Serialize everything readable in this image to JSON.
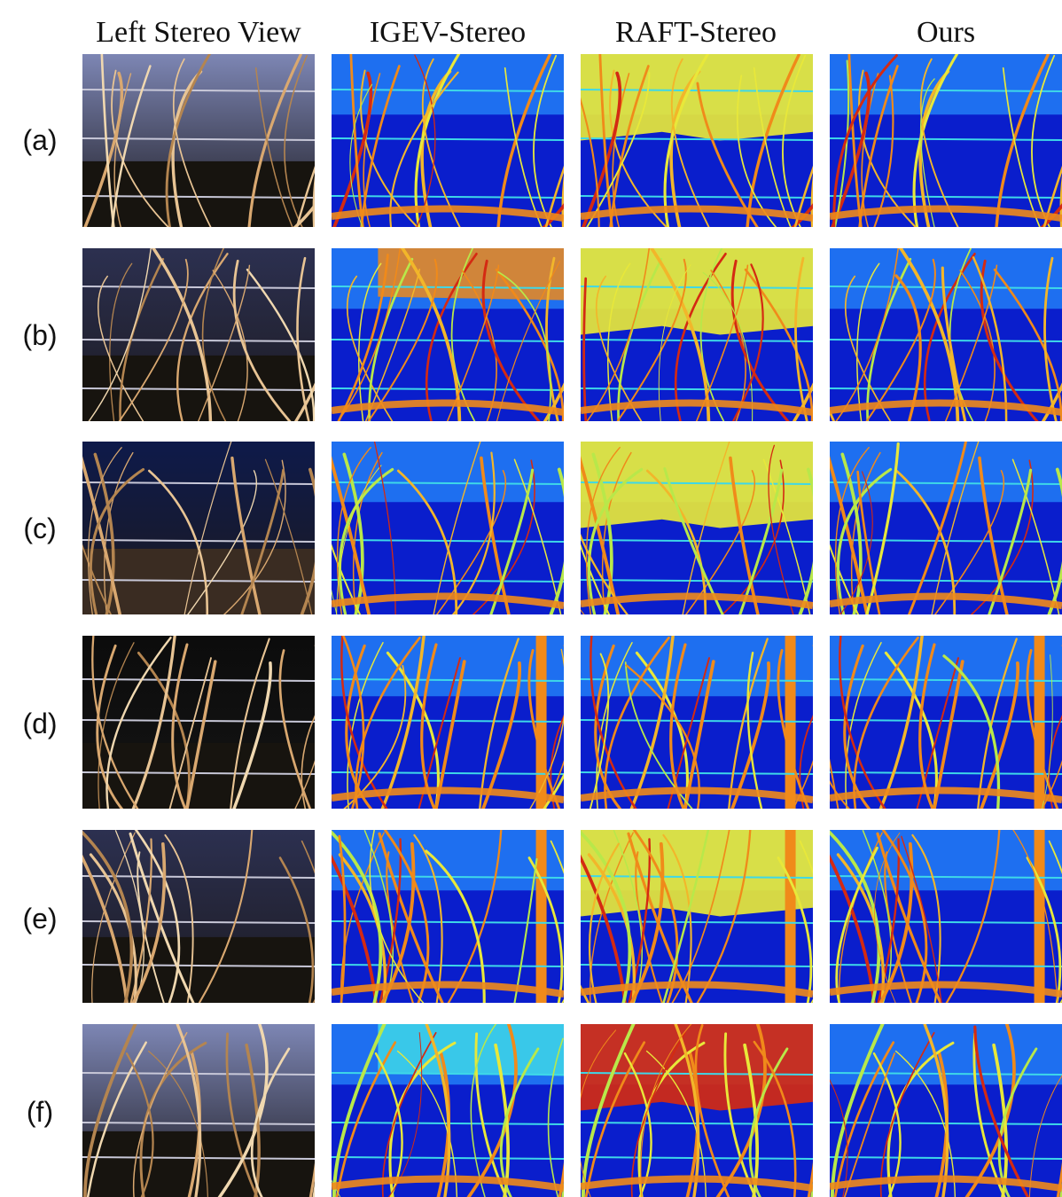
{
  "columns": [
    {
      "key": "left",
      "label": "Left Stereo View"
    },
    {
      "key": "igev",
      "label": "IGEV-Stereo"
    },
    {
      "key": "raft",
      "label": "RAFT-Stereo"
    },
    {
      "key": "ours",
      "label": "Ours"
    }
  ],
  "rows": [
    {
      "label": "(a)"
    },
    {
      "label": "(b)"
    },
    {
      "label": "(c)"
    },
    {
      "label": "(d)"
    },
    {
      "label": "(e)"
    },
    {
      "label": "(f)"
    }
  ],
  "palette": {
    "disparity_low": "#0a1ecc",
    "disparity_mid": "#1e6ff0",
    "disparity_high_cyan": "#3ed8e8",
    "disparity_high_yellow": "#e8e83a",
    "disparity_orange": "#f08a1a",
    "disparity_red": "#d42a12",
    "sky": "#7d86b4",
    "vine": "#d9a870"
  }
}
